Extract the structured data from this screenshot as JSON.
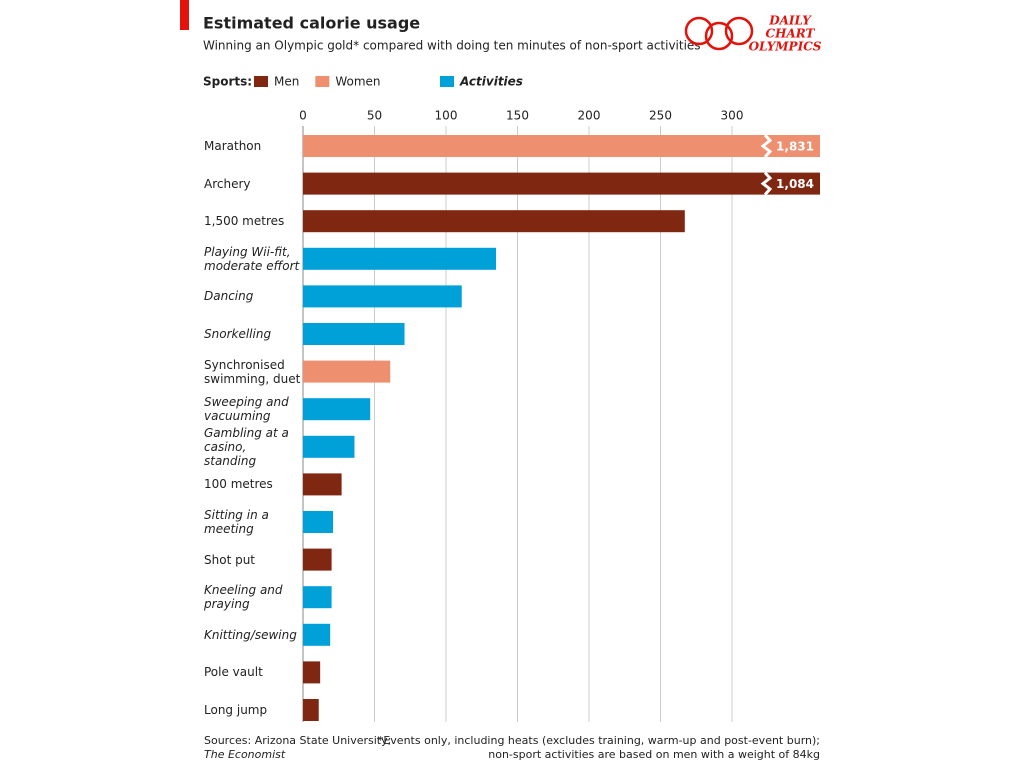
{
  "chart_data": {
    "type": "bar",
    "orientation": "horizontal",
    "title": "Estimated calorie usage",
    "subtitle": "Winning an Olympic gold* compared with doing ten minutes of non-sport activities",
    "legend_title": "Sports:",
    "logo": [
      "DAILY",
      "CHART",
      "OLYMPICS"
    ],
    "categories": [
      "Marathon",
      "Archery",
      "1,500 metres",
      "Playing Wii-fit, moderate effort",
      "Dancing",
      "Snorkelling",
      "Synchronised swimming, duet",
      "Sweeping and vacuuming",
      "Gambling at a casino, standing",
      "100 metres",
      "Sitting in a meeting",
      "Shot put",
      "Kneeling and praying",
      "Knitting/sewing",
      "Pole vault",
      "Long jump"
    ],
    "series": [
      {
        "name": "Men",
        "color": "#7f2711",
        "values": [
          null,
          1084,
          267,
          null,
          null,
          null,
          null,
          null,
          null,
          27,
          null,
          20,
          null,
          null,
          12,
          11
        ],
        "value_labels": [
          null,
          "1,084",
          null,
          null,
          null,
          null,
          null,
          null,
          null,
          null,
          null,
          null,
          null,
          null,
          null,
          null
        ]
      },
      {
        "name": "Women",
        "color": "#ee8f70",
        "values": [
          1831,
          null,
          null,
          null,
          null,
          null,
          61,
          null,
          null,
          null,
          null,
          null,
          null,
          null,
          null,
          null
        ],
        "value_labels": [
          "1,831",
          null,
          null,
          null,
          null,
          null,
          null,
          null,
          null,
          null,
          null,
          null,
          null,
          null,
          null,
          null
        ]
      },
      {
        "name": "Activities",
        "color": "#00a0d8",
        "italic": true,
        "values": [
          null,
          null,
          null,
          135,
          111,
          71,
          null,
          47,
          36,
          null,
          21,
          null,
          20,
          19,
          null,
          null
        ]
      }
    ],
    "xlim": [
      0,
      300
    ],
    "xticks": [
      0,
      50,
      100,
      150,
      200,
      250,
      300
    ],
    "grid": true,
    "sources": [
      "Sources: Arizona State University;",
      "The Economist"
    ],
    "footnote": [
      "*Events only, including heats (excludes training, warm-up and post-event burn);",
      "non-sport activities are based on men with a weight of 84kg"
    ]
  }
}
